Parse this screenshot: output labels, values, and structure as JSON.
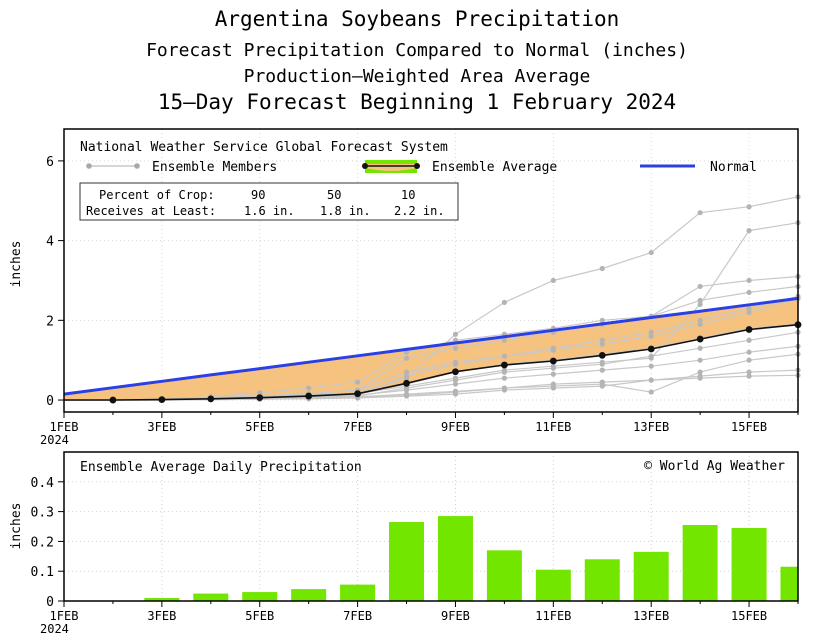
{
  "titles": {
    "line1": "Argentina Soybeans Precipitation",
    "line2": "Forecast Precipitation Compared to Normal (inches)",
    "line3": "Production—Weighted Area Average",
    "line4": "15—Day Forecast Beginning 1 February 2024"
  },
  "legend": {
    "model": "National Weather Service Global Forecast System",
    "ensemble_members": "Ensemble Members",
    "ensemble_average": "Ensemble Average",
    "normal": "Normal"
  },
  "crop_box": {
    "row1_label": "Percent of Crop:",
    "row1_values": [
      "90",
      "50",
      "10"
    ],
    "row2_label": "Receives at Least:",
    "row2_values": [
      "1.6 in.",
      "1.8 in.",
      "2.2 in."
    ]
  },
  "bottom_panel": {
    "title": "Ensemble Average Daily Precipitation",
    "credit": "© World Ag Weather"
  },
  "colors": {
    "normal": "#2b3fe6",
    "fill": "#f6c27f",
    "bars": "#73e600",
    "members": "#c8c8c8",
    "member_points": "#b4b4b4"
  },
  "chart_data": [
    {
      "type": "line",
      "title": "Forecast Precipitation Compared to Normal (inches)",
      "ylabel": "inches",
      "xlabel": "",
      "x": [
        1,
        2,
        3,
        4,
        5,
        6,
        7,
        8,
        9,
        10,
        11,
        12,
        13,
        14,
        15,
        16
      ],
      "xlim": [
        1,
        16
      ],
      "ylim": [
        -0.3,
        6.8
      ],
      "yticks": [
        0,
        2,
        4,
        6
      ],
      "xticks": [
        {
          "x": 1,
          "label": "1FEB",
          "sub": "2024"
        },
        {
          "x": 3,
          "label": "3FEB"
        },
        {
          "x": 5,
          "label": "5FEB"
        },
        {
          "x": 7,
          "label": "7FEB"
        },
        {
          "x": 9,
          "label": "9FEB"
        },
        {
          "x": 11,
          "label": "11FEB"
        },
        {
          "x": 13,
          "label": "13FEB"
        },
        {
          "x": 15,
          "label": "15FEB"
        }
      ],
      "series": [
        {
          "name": "Normal",
          "values": [
            0.15,
            0.31,
            0.47,
            0.63,
            0.79,
            0.95,
            1.11,
            1.27,
            1.43,
            1.59,
            1.75,
            1.91,
            2.07,
            2.23,
            2.39,
            2.55
          ]
        },
        {
          "name": "Ensemble Average",
          "values": [
            0.0,
            0.0,
            0.01,
            0.03,
            0.06,
            0.1,
            0.16,
            0.42,
            0.71,
            0.88,
            0.98,
            1.12,
            1.28,
            1.53,
            1.77,
            1.89
          ]
        }
      ],
      "members": [
        [
          0,
          0,
          0,
          0.05,
          0.08,
          0.12,
          0.18,
          0.55,
          1.65,
          2.45,
          3.0,
          3.3,
          3.7,
          4.7,
          4.85,
          5.1
        ],
        [
          0,
          0,
          0,
          0.04,
          0.07,
          0.11,
          0.16,
          0.35,
          0.55,
          0.75,
          0.85,
          0.95,
          1.05,
          2.4,
          4.25,
          4.45
        ],
        [
          0,
          0,
          0.02,
          0.06,
          0.1,
          0.16,
          0.25,
          1.05,
          1.3,
          1.5,
          1.7,
          1.9,
          2.1,
          2.85,
          3.0,
          3.1
        ],
        [
          0,
          0,
          0.02,
          0.08,
          0.18,
          0.3,
          0.45,
          1.2,
          1.5,
          1.65,
          1.8,
          2.0,
          2.1,
          2.5,
          2.7,
          2.85
        ],
        [
          0,
          0,
          0,
          0.05,
          0.1,
          0.15,
          0.25,
          0.7,
          0.95,
          1.1,
          1.25,
          1.4,
          1.6,
          1.9,
          2.2,
          2.55
        ],
        [
          0,
          0,
          0,
          0.03,
          0.06,
          0.1,
          0.15,
          0.4,
          0.7,
          0.9,
          1.0,
          1.15,
          1.3,
          1.55,
          1.8,
          1.9
        ],
        [
          0,
          0,
          0,
          0.02,
          0.04,
          0.07,
          0.12,
          0.25,
          0.4,
          0.55,
          0.65,
          0.75,
          0.85,
          1.0,
          1.2,
          1.35
        ],
        [
          0,
          0,
          0,
          0.01,
          0.02,
          0.04,
          0.07,
          0.12,
          0.2,
          0.3,
          0.4,
          0.45,
          0.5,
          0.55,
          0.6,
          0.62
        ],
        [
          0,
          0,
          0,
          0.02,
          0.03,
          0.05,
          0.08,
          0.15,
          0.22,
          0.3,
          0.35,
          0.4,
          0.2,
          0.7,
          1.0,
          1.15
        ],
        [
          0,
          0,
          0.01,
          0.03,
          0.05,
          0.08,
          0.12,
          0.6,
          0.9,
          1.1,
          1.3,
          1.5,
          1.7,
          2.0,
          2.3,
          2.6
        ],
        [
          0,
          0,
          0,
          0.02,
          0.04,
          0.06,
          0.1,
          0.3,
          0.5,
          0.7,
          0.8,
          0.9,
          1.1,
          1.3,
          1.5,
          1.7
        ],
        [
          0,
          0,
          0,
          0.01,
          0.02,
          0.03,
          0.05,
          0.1,
          0.15,
          0.25,
          0.3,
          0.35,
          0.5,
          0.6,
          0.7,
          0.75
        ]
      ]
    },
    {
      "type": "bar",
      "title": "Ensemble Average Daily Precipitation",
      "ylabel": "inches",
      "x": [
        1,
        2,
        3,
        4,
        5,
        6,
        7,
        8,
        9,
        10,
        11,
        12,
        13,
        14,
        15,
        16
      ],
      "values": [
        0.0,
        0.0,
        0.01,
        0.025,
        0.03,
        0.04,
        0.055,
        0.265,
        0.285,
        0.17,
        0.105,
        0.14,
        0.165,
        0.255,
        0.245,
        0.115
      ],
      "ylim": [
        0,
        0.5
      ],
      "yticks": [
        0,
        0.1,
        0.2,
        0.3,
        0.4
      ],
      "ytick_labels": [
        "0",
        "0.1",
        "0.2",
        "0.3",
        "0.4"
      ],
      "xlim": [
        1,
        16
      ]
    }
  ]
}
